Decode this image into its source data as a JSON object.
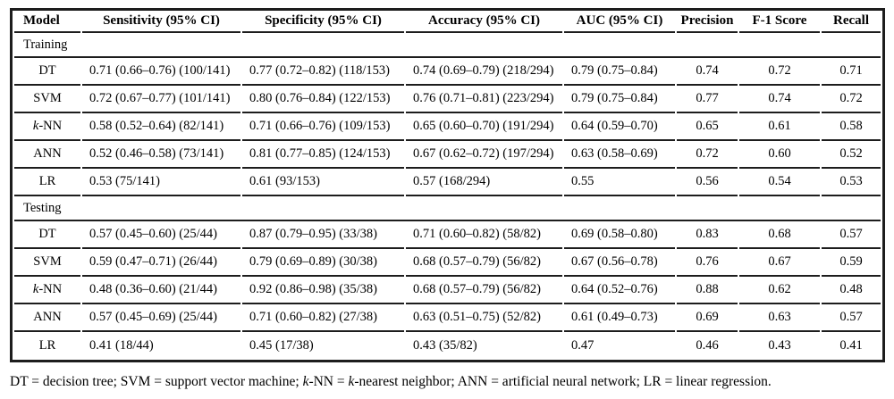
{
  "colors": {
    "background": "#ffffff",
    "text": "#000000",
    "border": "#1d1d1d"
  },
  "table": {
    "columns": [
      "Model",
      "Sensitivity (95% CI)",
      "Specificity (95% CI)",
      "Accuracy (95% CI)",
      "AUC (95% CI)",
      "Precision",
      "F-1 Score",
      "Recall"
    ],
    "sections": [
      {
        "label": "Training",
        "rows": [
          {
            "model": "DT",
            "sensitivity": "0.71 (0.66–0.76) (100/141)",
            "specificity": "0.77 (0.72–0.82) (118/153)",
            "accuracy": "0.74 (0.69–0.79) (218/294)",
            "auc": "0.79 (0.75–0.84)",
            "precision": "0.74",
            "f1_score": "0.72",
            "recall": "0.71"
          },
          {
            "model": "SVM",
            "sensitivity": "0.72 (0.67–0.77) (101/141)",
            "specificity": "0.80 (0.76–0.84) (122/153)",
            "accuracy": "0.76 (0.71–0.81) (223/294)",
            "auc": "0.79 (0.75–0.84)",
            "precision": "0.77",
            "f1_score": "0.74",
            "recall": "0.72"
          },
          {
            "model": "k-NN",
            "model_html": "<i>k</i>-NN",
            "sensitivity": "0.58 (0.52–0.64) (82/141)",
            "specificity": "0.71 (0.66–0.76) (109/153)",
            "accuracy": "0.65 (0.60–0.70) (191/294)",
            "auc": "0.64 (0.59–0.70)",
            "precision": "0.65",
            "f1_score": "0.61",
            "recall": "0.58"
          },
          {
            "model": "ANN",
            "sensitivity": "0.52 (0.46–0.58) (73/141)",
            "specificity": "0.81 (0.77–0.85) (124/153)",
            "accuracy": "0.67 (0.62–0.72) (197/294)",
            "auc": "0.63 (0.58–0.69)",
            "precision": "0.72",
            "f1_score": "0.60",
            "recall": "0.52"
          },
          {
            "model": "LR",
            "sensitivity": "0.53 (75/141)",
            "specificity": "0.61 (93/153)",
            "accuracy": "0.57 (168/294)",
            "auc": "0.55",
            "precision": "0.56",
            "f1_score": "0.54",
            "recall": "0.53"
          }
        ]
      },
      {
        "label": "Testing",
        "rows": [
          {
            "model": "DT",
            "sensitivity": "0.57 (0.45–0.60) (25/44)",
            "specificity": "0.87 (0.79–0.95) (33/38)",
            "accuracy": "0.71 (0.60–0.82) (58/82)",
            "auc": "0.69 (0.58–0.80)",
            "precision": "0.83",
            "f1_score": "0.68",
            "recall": "0.57"
          },
          {
            "model": "SVM",
            "sensitivity": "0.59 (0.47–0.71) (26/44)",
            "specificity": "0.79 (0.69–0.89) (30/38)",
            "accuracy": "0.68 (0.57–0.79) (56/82)",
            "auc": "0.67 (0.56–0.78)",
            "precision": "0.76",
            "f1_score": "0.67",
            "recall": "0.59"
          },
          {
            "model": "k-NN",
            "model_html": "<i>k</i>-NN",
            "sensitivity": "0.48 (0.36–0.60) (21/44)",
            "specificity": "0.92 (0.86–0.98) (35/38)",
            "accuracy": "0.68 (0.57–0.79) (56/82)",
            "auc": "0.64 (0.52–0.76)",
            "precision": "0.88",
            "f1_score": "0.62",
            "recall": "0.48"
          },
          {
            "model": "ANN",
            "sensitivity": "0.57 (0.45–0.69) (25/44)",
            "specificity": "0.71 (0.60–0.82) (27/38)",
            "accuracy": "0.63 (0.51–0.75) (52/82)",
            "auc": "0.61 (0.49–0.73)",
            "precision": "0.69",
            "f1_score": "0.63",
            "recall": "0.57"
          },
          {
            "model": "LR",
            "sensitivity": "0.41 (18/44)",
            "specificity": "0.45 (17/38)",
            "accuracy": "0.43 (35/82)",
            "auc": "0.47",
            "precision": "0.46",
            "f1_score": "0.43",
            "recall": "0.41"
          }
        ]
      }
    ]
  },
  "footnote_html": "DT = decision tree; SVM = support vector machine; <i>k</i>-NN = <i>k</i>-nearest neighbor; ANN = artificial neural network; LR = linear regression."
}
